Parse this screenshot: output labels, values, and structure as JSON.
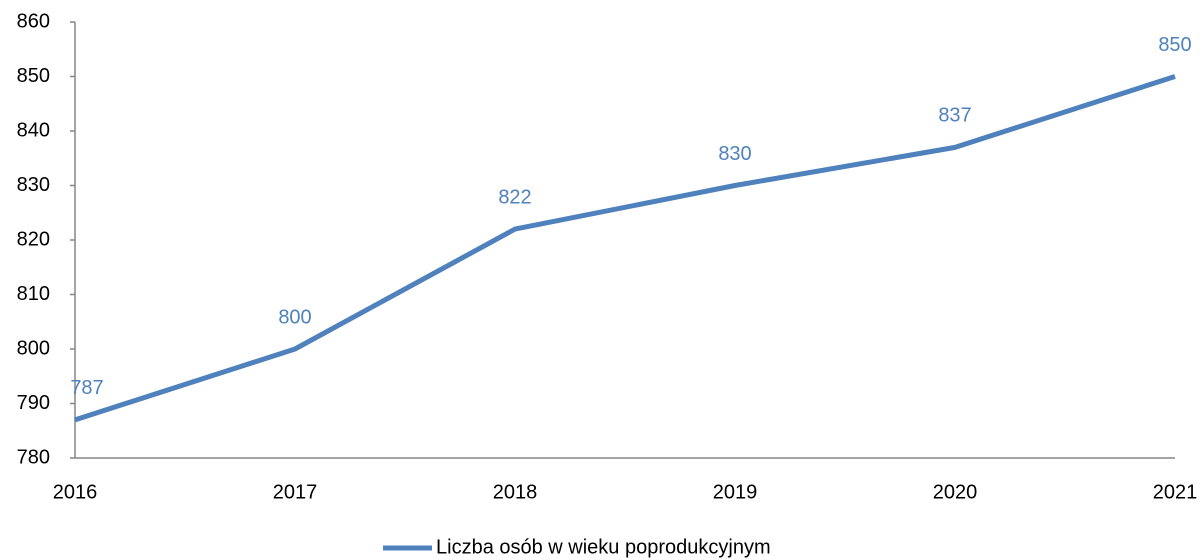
{
  "chart_data": {
    "type": "line",
    "categories": [
      "2016",
      "2017",
      "2018",
      "2019",
      "2020",
      "2021"
    ],
    "series": [
      {
        "name": "Liczba osób w wieku poprodukcyjnym",
        "color": "#4f81bd",
        "values": [
          787,
          800,
          822,
          830,
          837,
          850
        ]
      }
    ],
    "ylim": [
      780,
      860
    ],
    "yticks": [
      780,
      790,
      800,
      810,
      820,
      830,
      840,
      850,
      860
    ],
    "grid": false,
    "legend": "bottom",
    "data_labels": true
  }
}
